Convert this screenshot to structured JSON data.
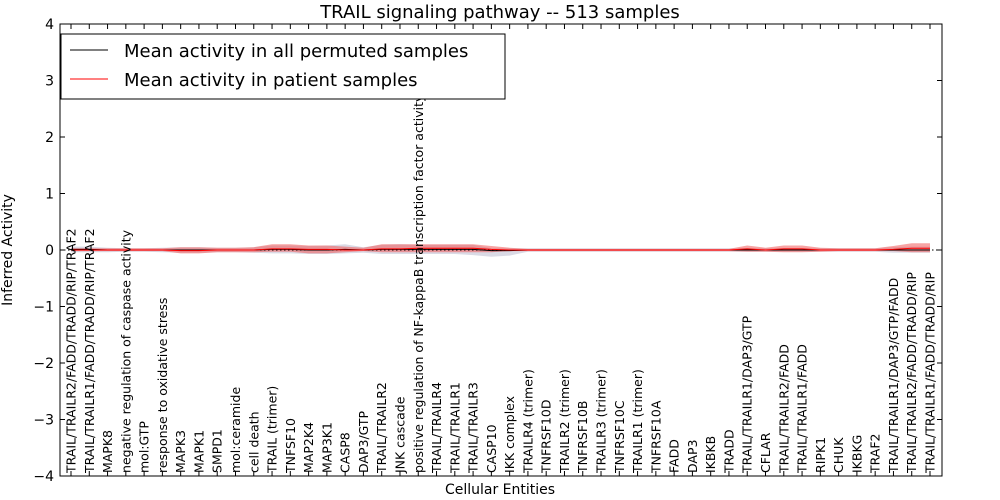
{
  "chart_data": {
    "type": "line",
    "title": "TRAIL signaling pathway -- 513 samples",
    "xlabel": "Cellular Entities",
    "ylabel": "Inferred Activity",
    "ylim": [
      -4,
      4
    ],
    "yticks": [
      4,
      3,
      2,
      1,
      0,
      -1,
      -2,
      -3,
      -4
    ],
    "ytick_labels": [
      "4",
      "3",
      "2",
      "1",
      "0",
      "−1",
      "−2",
      "−3",
      "−4"
    ],
    "grid": false,
    "legend_position": "top-left",
    "categories": [
      "TRAIL/TRAILR2/FADD/TRADD/RIP/TRAF2",
      "TRAIL/TRAILR1/FADD/TRADD/RIP/TRAF2",
      "MAPK8",
      "negative regulation of caspase activity",
      "mol:GTP",
      "response to oxidative stress",
      "MAPK3",
      "MAPK1",
      "SMPD1",
      "mol:ceramide",
      "cell death",
      "TRAIL (trimer)",
      "TNFSF10",
      "MAP2K4",
      "MAP3K1",
      "CASP8",
      "DAP3/GTP",
      "TRAIL/TRAILR2",
      "JNK cascade",
      "positive regulation of NF-kappaB transcription factor activity",
      "TRAIL/TRAILR4",
      "TRAIL/TRAILR1",
      "TRAIL/TRAILR3",
      "CASP10",
      "IKK complex",
      "TRAILR4 (trimer)",
      "TNFRSF10D",
      "TRAILR2 (trimer)",
      "TNFRSF10B",
      "TRAILR3 (trimer)",
      "TNFRSF10C",
      "TRAILR1 (trimer)",
      "TNFRSF10A",
      "FADD",
      "DAP3",
      "IKBKB",
      "TRADD",
      "TRAIL/TRAILR1/DAP3/GTP",
      "CFLAR",
      "TRAIL/TRAILR2/FADD",
      "TRAIL/TRAILR1/FADD",
      "RIPK1",
      "CHUK",
      "IKBKG",
      "TRAF2",
      "TRAIL/TRAILR1/DAP3/GTP/FADD",
      "TRAIL/TRAILR2/FADD/TRADD/RIP",
      "TRAIL/TRAILR1/FADD/TRADD/RIP"
    ],
    "series": [
      {
        "name": "Mean activity in all permuted samples",
        "color": "#000000",
        "values": [
          0.01,
          0.01,
          0.0,
          0.0,
          0.0,
          0.0,
          0.0,
          0.0,
          0.0,
          0.0,
          0.0,
          0.01,
          0.01,
          0.0,
          0.0,
          0.01,
          0.0,
          0.01,
          0.01,
          0.01,
          0.01,
          0.01,
          0.01,
          -0.01,
          -0.01,
          0.0,
          0.0,
          0.0,
          0.0,
          0.0,
          0.0,
          0.0,
          0.0,
          0.0,
          0.0,
          0.0,
          0.0,
          0.0,
          0.0,
          0.0,
          0.0,
          0.0,
          0.0,
          0.0,
          0.0,
          0.0,
          0.0,
          0.0
        ],
        "band_upper": [
          0.06,
          0.06,
          0.04,
          0.03,
          0.03,
          0.04,
          0.05,
          0.05,
          0.04,
          0.04,
          0.05,
          0.08,
          0.08,
          0.07,
          0.08,
          0.1,
          0.05,
          0.09,
          0.1,
          0.09,
          0.09,
          0.09,
          0.09,
          0.03,
          0.03,
          0.03,
          0.03,
          0.03,
          0.03,
          0.03,
          0.03,
          0.03,
          0.03,
          0.03,
          0.03,
          0.03,
          0.03,
          0.03,
          0.03,
          0.03,
          0.03,
          0.03,
          0.03,
          0.03,
          0.03,
          0.05,
          0.06,
          0.06
        ],
        "band_lower": [
          -0.04,
          -0.04,
          -0.04,
          -0.03,
          -0.03,
          -0.04,
          -0.05,
          -0.05,
          -0.04,
          -0.04,
          -0.05,
          -0.06,
          -0.06,
          -0.07,
          -0.07,
          -0.06,
          -0.05,
          -0.07,
          -0.07,
          -0.07,
          -0.07,
          -0.07,
          -0.09,
          -0.12,
          -0.1,
          -0.03,
          -0.03,
          -0.03,
          -0.03,
          -0.03,
          -0.03,
          -0.03,
          -0.03,
          -0.03,
          -0.03,
          -0.03,
          -0.03,
          -0.03,
          -0.03,
          -0.03,
          -0.03,
          -0.03,
          -0.03,
          -0.03,
          -0.03,
          -0.05,
          -0.05,
          -0.05
        ]
      },
      {
        "name": "Mean activity in patient samples",
        "color": "#ff0000",
        "values": [
          0.0,
          0.0,
          0.0,
          0.0,
          0.0,
          0.0,
          -0.01,
          -0.01,
          0.0,
          0.0,
          0.0,
          0.02,
          0.02,
          0.01,
          0.01,
          0.0,
          0.0,
          0.02,
          0.02,
          0.03,
          0.03,
          0.03,
          0.03,
          0.01,
          0.0,
          0.0,
          0.0,
          0.0,
          0.0,
          0.0,
          0.0,
          0.0,
          0.0,
          0.0,
          0.0,
          0.0,
          0.0,
          0.02,
          0.0,
          0.02,
          0.02,
          0.0,
          0.0,
          0.0,
          0.0,
          0.01,
          0.03,
          0.03
        ],
        "band_upper": [
          0.03,
          0.03,
          0.03,
          0.03,
          0.03,
          0.03,
          0.05,
          0.05,
          0.04,
          0.04,
          0.05,
          0.1,
          0.1,
          0.08,
          0.08,
          0.06,
          0.04,
          0.1,
          0.1,
          0.1,
          0.1,
          0.1,
          0.1,
          0.07,
          0.04,
          0.02,
          0.02,
          0.02,
          0.02,
          0.02,
          0.02,
          0.02,
          0.02,
          0.02,
          0.02,
          0.02,
          0.02,
          0.08,
          0.04,
          0.08,
          0.08,
          0.04,
          0.03,
          0.03,
          0.03,
          0.07,
          0.12,
          0.12
        ],
        "band_lower": [
          -0.02,
          -0.02,
          -0.02,
          -0.02,
          -0.02,
          -0.02,
          -0.06,
          -0.06,
          -0.04,
          -0.04,
          -0.04,
          -0.03,
          -0.03,
          -0.06,
          -0.06,
          -0.04,
          -0.02,
          -0.04,
          -0.04,
          -0.04,
          -0.04,
          -0.04,
          -0.04,
          -0.04,
          -0.02,
          -0.02,
          -0.02,
          -0.02,
          -0.02,
          -0.02,
          -0.02,
          -0.02,
          -0.02,
          -0.02,
          -0.02,
          -0.02,
          -0.02,
          -0.03,
          -0.03,
          -0.04,
          -0.04,
          -0.03,
          -0.02,
          -0.02,
          -0.02,
          -0.02,
          -0.04,
          -0.04
        ]
      }
    ]
  }
}
